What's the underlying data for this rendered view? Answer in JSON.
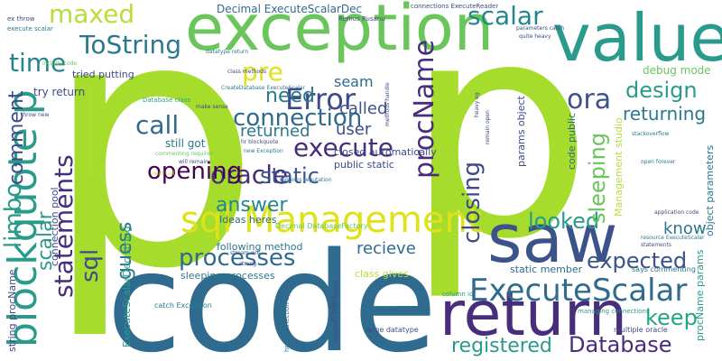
{
  "background": "#ffffff",
  "palette": {
    "green": "#a6dc2c",
    "teal": "#2a9b8a",
    "blue": "#2f6b8e",
    "purple": "#472d7b",
    "lime": "#6ac55b",
    "yellow": "#dde318",
    "light": "#b9de3a"
  },
  "words": [
    {
      "text": "p",
      "color": "#a6dc2c"
    },
    {
      "text": "p",
      "color": "#a6dc2c"
    },
    {
      "text": "code",
      "color": "#2f6b8e"
    },
    {
      "text": "exception",
      "color": "#6ac55b"
    },
    {
      "text": "value",
      "color": "#2a9b8a"
    },
    {
      "text": "saw",
      "color": "#3b528b"
    },
    {
      "text": "return",
      "color": "#472d7b"
    },
    {
      "text": "sql Management",
      "color": "#dde318"
    },
    {
      "text": "blockquote p",
      "color": "#2a9b8a"
    },
    {
      "text": "ExecuteScalar",
      "color": "#2f6b8e"
    },
    {
      "text": "procName",
      "color": "#472d7b"
    },
    {
      "text": "Error",
      "color": "#3e4a89"
    },
    {
      "text": "maxed",
      "color": "#b9de3a"
    },
    {
      "text": "ToString",
      "color": "#2a788e"
    },
    {
      "text": "time",
      "color": "#25858e"
    },
    {
      "text": "pre",
      "color": "#dde318"
    },
    {
      "text": "scalar",
      "color": "#25858e"
    },
    {
      "text": "ora",
      "color": "#3b528b"
    },
    {
      "text": "need",
      "color": "#2a788e"
    },
    {
      "text": "connection",
      "color": "#2f6b8e"
    },
    {
      "text": "execute",
      "color": "#472d7b"
    },
    {
      "text": "oracle",
      "color": "#472d7b"
    },
    {
      "text": "opening",
      "color": "#440154"
    },
    {
      "text": "static",
      "color": "#3b528b"
    },
    {
      "text": "call",
      "color": "#2f6b8e"
    },
    {
      "text": "processes",
      "color": "#2f6b8e"
    },
    {
      "text": "statements",
      "color": "#472d7b"
    },
    {
      "text": "sql",
      "color": "#3e4a89"
    },
    {
      "text": "answer",
      "color": "#25858e"
    },
    {
      "text": "design",
      "color": "#2a9b8a"
    },
    {
      "text": "returning",
      "color": "#2a788e"
    },
    {
      "text": "looked",
      "color": "#2a9b8a"
    },
    {
      "text": "expected",
      "color": "#3b528b"
    },
    {
      "text": "keep",
      "color": "#22a785"
    },
    {
      "text": "Database",
      "color": "#472d7b"
    },
    {
      "text": "registered",
      "color": "#2a9b8a"
    },
    {
      "text": "sleeping",
      "color": "#6ac55b"
    },
    {
      "text": "closing",
      "color": "#3e4a89"
    },
    {
      "text": "comment",
      "color": "#3e4a89"
    },
    {
      "text": "limbo",
      "color": "#2a9b8a"
    },
    {
      "text": "scalar",
      "color": "#2a9b8a"
    },
    {
      "text": "guess",
      "color": "#2a788e"
    },
    {
      "text": "recieve",
      "color": "#2f6b8e"
    },
    {
      "text": "seam",
      "color": "#2f6b8e"
    },
    {
      "text": "called",
      "color": "#3b528b"
    },
    {
      "text": "returned",
      "color": "#2a788e"
    },
    {
      "text": "user",
      "color": "#3e4a89"
    },
    {
      "text": "know",
      "color": "#2a788e"
    },
    {
      "text": "try return",
      "color": "#3e4a89"
    },
    {
      "text": "still got",
      "color": "#2a788e"
    },
    {
      "text": "Decimal ExecuteScalarDec",
      "color": "#2f6b8e"
    },
    {
      "text": "debug mode",
      "color": "#6ac55b"
    },
    {
      "text": "tried putting",
      "color": "#3e4a89"
    },
    {
      "text": "closed automatically",
      "color": "#3e4a89"
    },
    {
      "text": "Ideas heres",
      "color": "#2f6b8e"
    },
    {
      "text": "following method",
      "color": "#2a788e"
    },
    {
      "text": "class gives",
      "color": "#b9de3a"
    },
    {
      "text": "static member",
      "color": "#2f6b8e"
    },
    {
      "text": "sleeping processes",
      "color": "#2a788e"
    },
    {
      "text": "public static",
      "color": "#3e4a89"
    },
    {
      "text": "connection pool",
      "color": "#3e4a89"
    },
    {
      "text": "string procName",
      "color": "#3e4a89"
    },
    {
      "text": "ExecuteScalarDec string",
      "color": "#2a9b8a"
    },
    {
      "text": "Management studio",
      "color": "#b9de3a"
    },
    {
      "text": "params object",
      "color": "#3e4a89"
    },
    {
      "text": "code public",
      "color": "#2f6b8e"
    },
    {
      "text": "procName params",
      "color": "#2a9b8a"
    },
    {
      "text": "object parameters",
      "color": "#2a788e"
    },
    {
      "text": "says commenting",
      "color": "#2a788e"
    },
    {
      "text": "managing connections",
      "color": "#2a9b8a"
    },
    {
      "text": "multiple oracle",
      "color": "#3e4a89"
    },
    {
      "text": "Decimal DatabaseFactory",
      "color": "#6ac55b"
    },
    {
      "text": "catch Exception",
      "color": "#2a788e"
    },
    {
      "text": "large datatype",
      "color": "#3e4a89"
    },
    {
      "text": "column id",
      "color": "#2a9b8a"
    },
    {
      "text": "Stream constructed",
      "color": "#3e4a89"
    },
    {
      "text": "href connection open",
      "color": "#2f6b8e"
    },
    {
      "text": "connections ExecuteReader",
      "color": "#3e4a89"
    },
    {
      "text": "Remus Rusanu",
      "color": "#3e4a89"
    },
    {
      "text": "ex throw",
      "color": "#3e4a89"
    },
    {
      "text": "execute scalar",
      "color": "#2a788e"
    },
    {
      "text": "include code",
      "color": "#6ac55b"
    },
    {
      "text": "throw new",
      "color": "#3e4a89"
    },
    {
      "text": "datatype return",
      "color": "#2a788e"
    },
    {
      "text": "class methods",
      "color": "#3e4a89"
    },
    {
      "text": "CreateDatabase ExecuteScalar",
      "color": "#2a788e"
    },
    {
      "text": "Database class",
      "color": "#22a785"
    },
    {
      "text": "make sense",
      "color": "#3e4a89"
    },
    {
      "text": "hr blockquote",
      "color": "#3e4a89"
    },
    {
      "text": "new Exception",
      "color": "#2a788e"
    },
    {
      "text": "will remain",
      "color": "#3e4a89"
    },
    {
      "text": "commenting requires",
      "color": "#6ac55b"
    },
    {
      "text": "next call",
      "color": "#b9de3a"
    },
    {
      "text": "requires reputation",
      "color": "#2a788e"
    },
    {
      "text": "application code",
      "color": "#3e4a89"
    },
    {
      "text": "resource ExecuteScalar",
      "color": "#2a788e"
    },
    {
      "text": "open forever",
      "color": "#2a788e"
    },
    {
      "text": "parameters catch",
      "color": "#3e4a89"
    },
    {
      "text": "quite heavy",
      "color": "#3e4a89"
    },
    {
      "text": "stackoverflow",
      "color": "#2a788e"
    },
    {
      "text": "DatabaseFactory CreateDatabase",
      "color": "#b9de3a"
    },
    {
      "text": "stream will",
      "color": "#3e4a89"
    },
    {
      "text": "strong",
      "color": "#3e4a89"
    },
    {
      "text": "questions",
      "color": "#3e4a89"
    },
    {
      "text": "methods handle",
      "color": "#3e4a89"
    },
    {
      "text": "heavy eg",
      "color": "#3e4a89"
    },
    {
      "text": "remain open",
      "color": "#3e4a89"
    },
    {
      "text": "statements",
      "color": "#3e4a89"
    }
  ]
}
